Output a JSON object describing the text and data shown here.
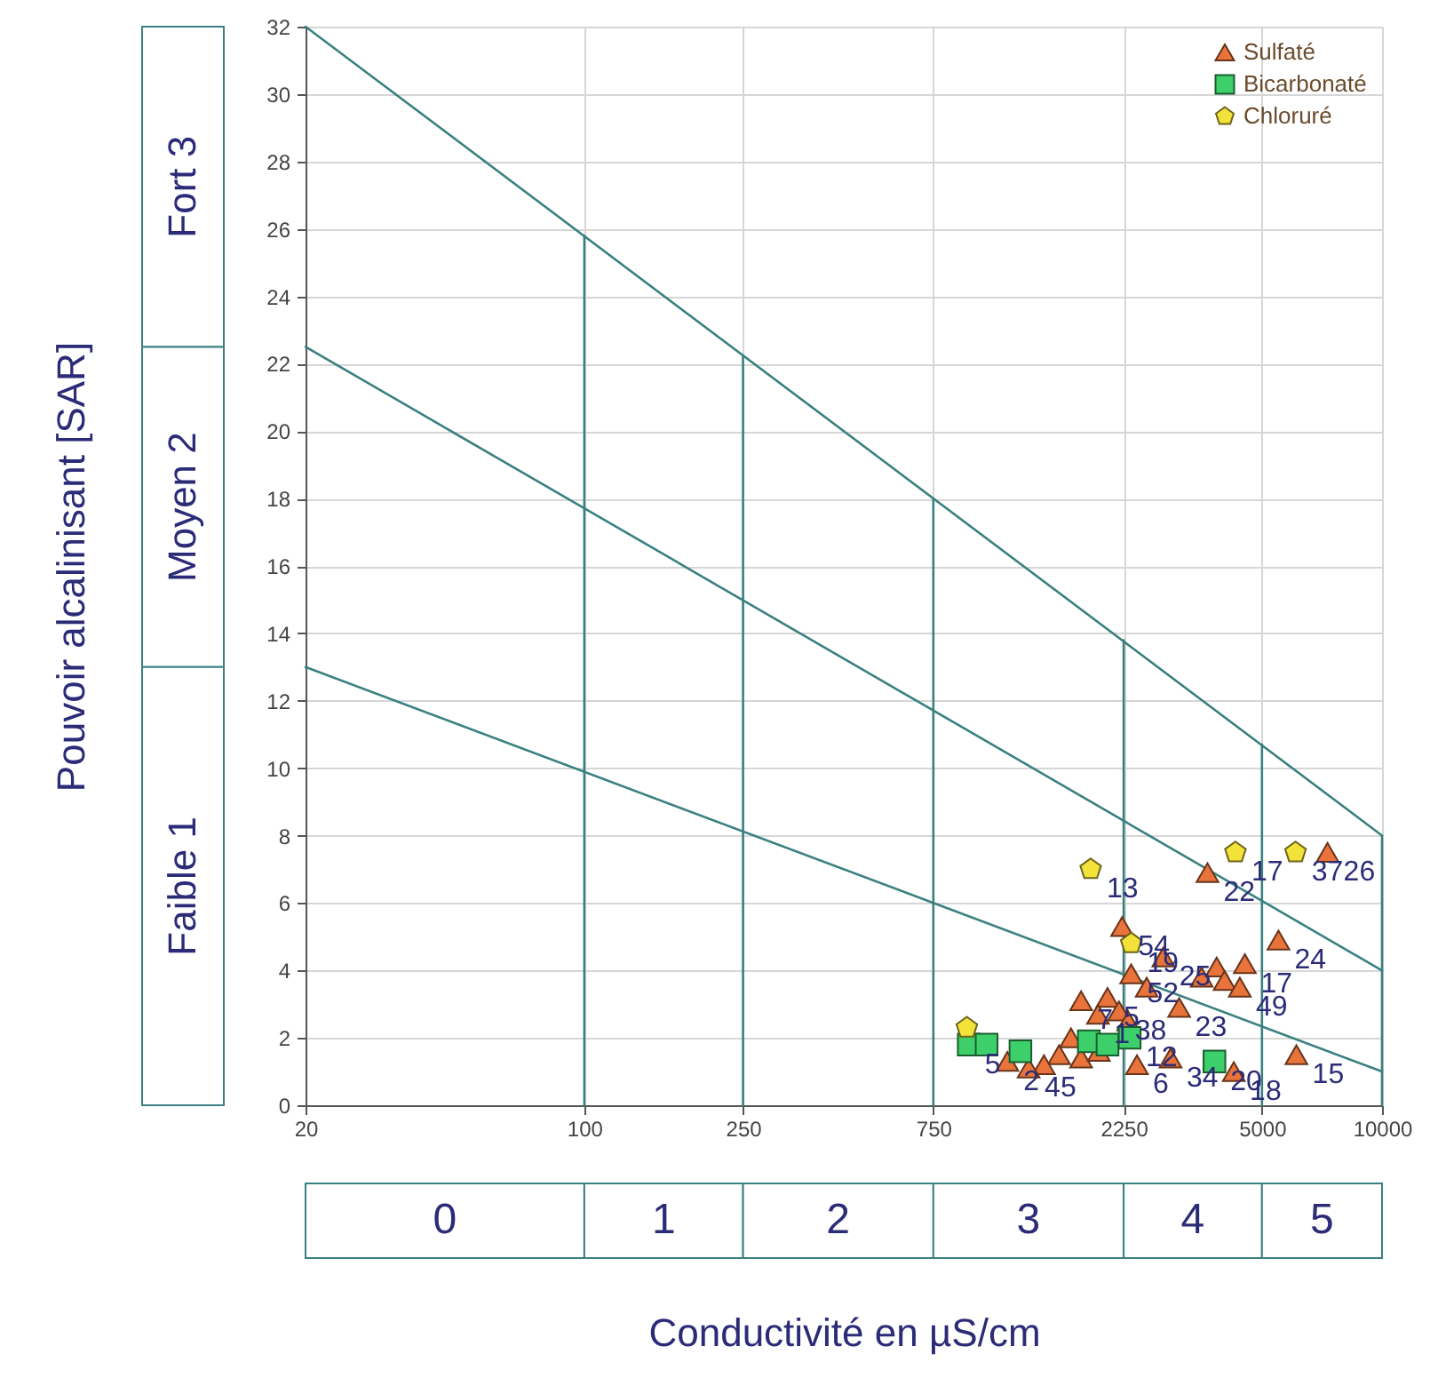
{
  "chart_data": {
    "type": "scatter",
    "xlabel": "Conductivité en µS/cm",
    "ylabel": "Pouvoir alcalinisant [SAR]",
    "log": "x",
    "xlim": [
      20,
      10000
    ],
    "xticks": [
      20,
      100,
      250,
      750,
      2250,
      5000,
      10000
    ],
    "ylim": [
      0,
      32
    ],
    "yticks": [
      0,
      2,
      4,
      6,
      8,
      10,
      12,
      14,
      16,
      18,
      20,
      22,
      24,
      26,
      28,
      30,
      32
    ],
    "grid": true,
    "legend": "top right",
    "series": [
      {
        "type": "line",
        "color": "#3b8080",
        "x": [
          20,
          10000
        ],
        "values": [
          32,
          8
        ]
      },
      {
        "type": "line",
        "color": "#3b8080",
        "x": [
          20,
          10000
        ],
        "values": [
          22.5,
          4
        ]
      },
      {
        "type": "line",
        "color": "#3b8080",
        "x": [
          20,
          10000
        ],
        "values": [
          13,
          1
        ]
      },
      {
        "type": "line",
        "color": "#3b8080",
        "x": [
          100,
          100
        ],
        "values": [
          0,
          25.8
        ]
      },
      {
        "type": "line",
        "color": "#3b8080",
        "x": [
          250,
          250
        ],
        "values": [
          0,
          22.2
        ]
      },
      {
        "type": "line",
        "color": "#3b8080",
        "x": [
          750,
          750
        ],
        "values": [
          0,
          18
        ]
      },
      {
        "type": "line",
        "color": "#3b8080",
        "x": [
          2250,
          2250
        ],
        "values": [
          0,
          13.8
        ]
      },
      {
        "type": "line",
        "color": "#3b8080",
        "x": [
          5000,
          5000
        ],
        "values": [
          0,
          10.7
        ]
      },
      {
        "type": "line",
        "color": "#3b8080",
        "x": [
          10000,
          10000
        ],
        "values": [
          0,
          8
        ]
      },
      {
        "name": "Sulfaté",
        "marker": "triangle",
        "color": "#e8743b",
        "x": [
          7300,
          3650,
          5500,
          6100,
          4250,
          2230,
          2830,
          2350,
          2570,
          3100,
          3530,
          3850,
          4530,
          4030,
          4400,
          1760,
          2050,
          1940,
          2190,
          2310,
          1660,
          1550,
          1760,
          1950,
          1420,
          1300,
          2950,
          2430,
          1150
        ],
        "values": [
          7.5,
          6.9,
          4.9,
          1.5,
          1.0,
          5.3,
          4.4,
          3.9,
          3.5,
          2.9,
          3.8,
          4.1,
          4.2,
          3.7,
          3.5,
          3.1,
          3.2,
          2.7,
          2.8,
          2.5,
          2.0,
          1.5,
          1.4,
          1.6,
          1.2,
          1.1,
          1.4,
          1.2,
          1.3
        ]
      },
      {
        "name": "Bicarbonaté",
        "marker": "square",
        "color": "#3ccf6a",
        "x": [
          920,
          1020,
          1240,
          1840,
          2050,
          2330,
          3800
        ],
        "values": [
          1.8,
          1.8,
          1.6,
          1.9,
          1.8,
          2.0,
          1.3
        ]
      },
      {
        "name": "Chloruré",
        "color": "#f3e23a",
        "x": [
          910,
          1860,
          4290,
          6070,
          2350
        ],
        "values": [
          2.3,
          7.0,
          7.5,
          7.5,
          4.8
        ]
      }
    ],
    "annotations": [
      {
        "text": "26",
        "x": 7300,
        "y": 7.5
      },
      {
        "text": "22",
        "x": 3650,
        "y": 6.9
      },
      {
        "text": "24",
        "x": 5500,
        "y": 4.9
      },
      {
        "text": "15",
        "x": 6100,
        "y": 1.5
      },
      {
        "text": "18",
        "x": 4250,
        "y": 1.0
      },
      {
        "text": "54",
        "x": 2230,
        "y": 5.3
      },
      {
        "text": "25",
        "x": 2830,
        "y": 4.4
      },
      {
        "text": "52",
        "x": 2350,
        "y": 3.9
      },
      {
        "text": "23",
        "x": 3100,
        "y": 2.9
      },
      {
        "text": "17",
        "x": 4530,
        "y": 4.2
      },
      {
        "text": "49",
        "x": 4400,
        "y": 3.5
      },
      {
        "text": "7",
        "x": 1760,
        "y": 3.1
      },
      {
        "text": "5",
        "x": 2050,
        "y": 3.2
      },
      {
        "text": "1",
        "x": 1940,
        "y": 2.7
      },
      {
        "text": "38",
        "x": 2190,
        "y": 2.8
      },
      {
        "text": "45",
        "x": 1300,
        "y": 1.1
      },
      {
        "text": "34",
        "x": 2950,
        "y": 1.4
      },
      {
        "text": "6",
        "x": 2430,
        "y": 1.2
      },
      {
        "text": "2",
        "x": 1150,
        "y": 1.3
      },
      {
        "text": "5",
        "x": 920,
        "y": 1.8
      },
      {
        "text": "12",
        "x": 2330,
        "y": 2.0
      },
      {
        "text": "20",
        "x": 3800,
        "y": 1.3
      },
      {
        "text": "13",
        "x": 1860,
        "y": 7.0
      },
      {
        "text": "17",
        "x": 4290,
        "y": 7.5
      },
      {
        "text": "37",
        "x": 6070,
        "y": 7.5
      },
      {
        "text": "19",
        "x": 2350,
        "y": 4.8
      },
      "Fort  3",
      "Moyen  2",
      "Faible  1",
      "0",
      "1",
      "2",
      "3",
      "4",
      "5"
    ]
  }
}
